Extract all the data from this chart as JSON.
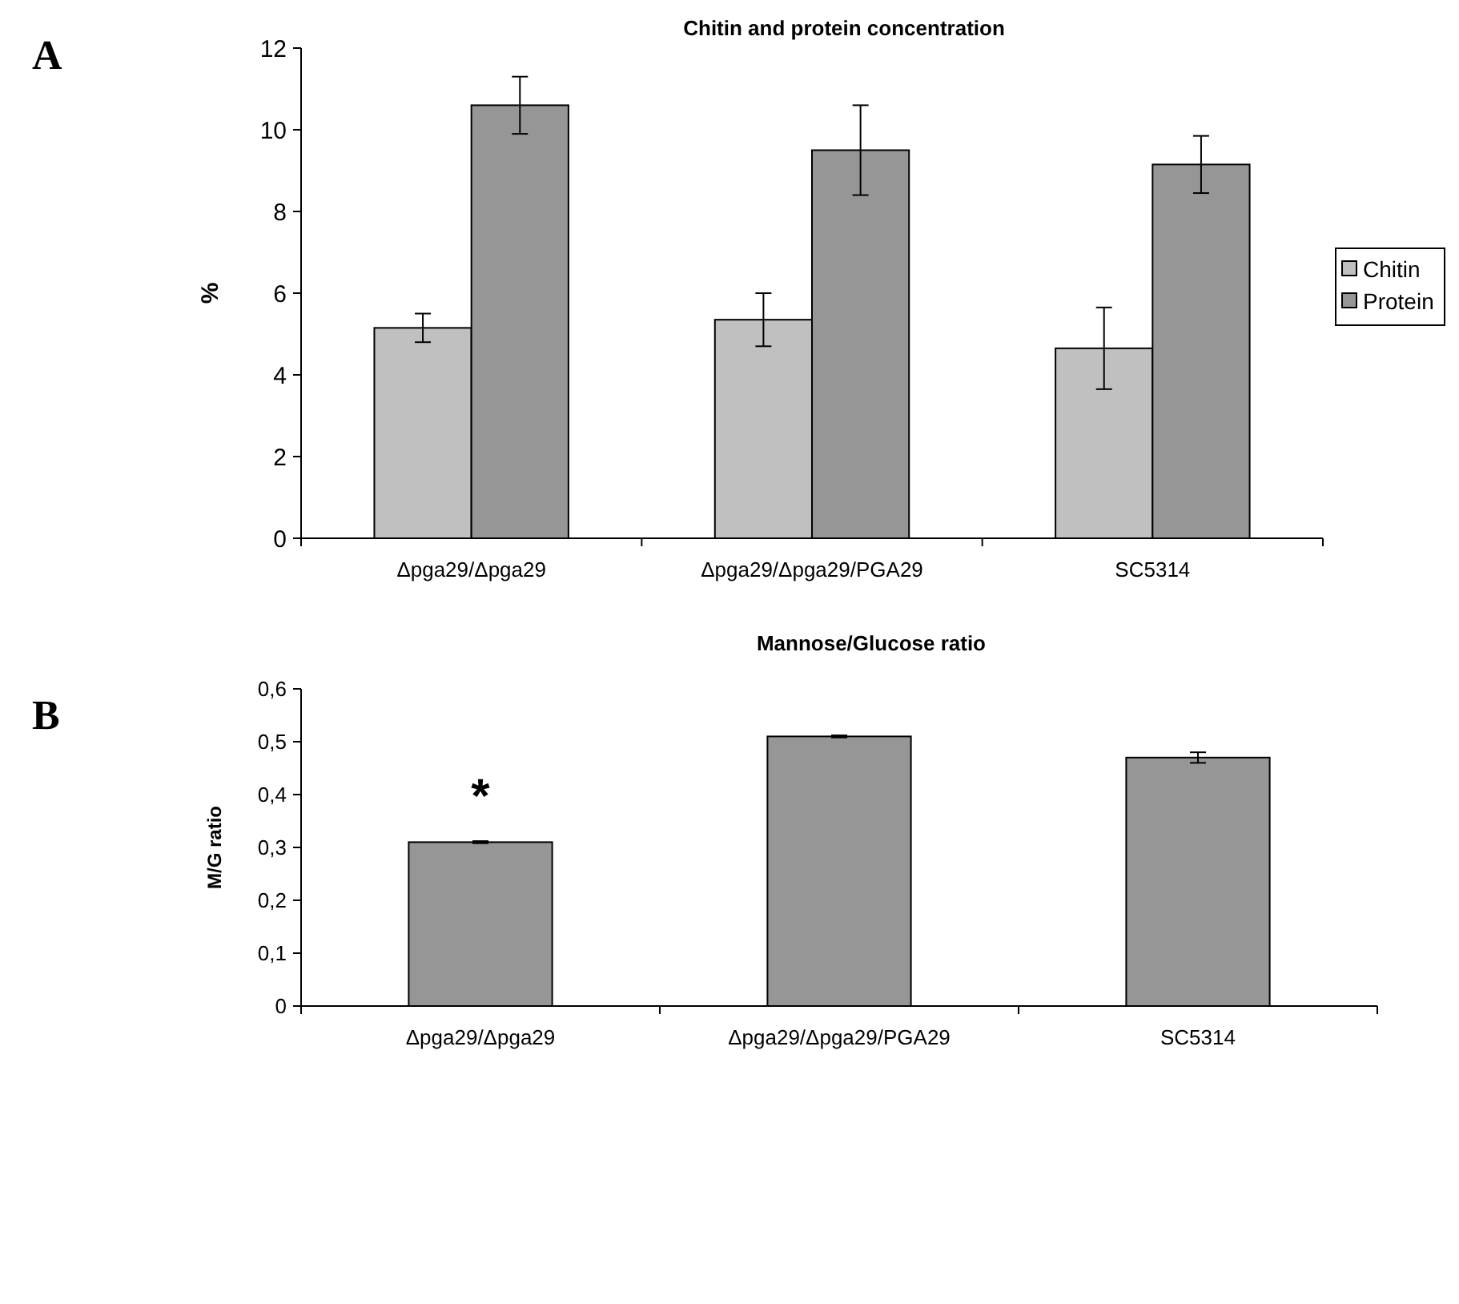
{
  "chart_data": [
    {
      "type": "bar",
      "title": "Chitin and protein concentration",
      "ylabel": "%",
      "annotations": [
        "A"
      ],
      "categories": [
        "Δpga29/Δpga29",
        "Δpga29/Δpga29/PGA29",
        "SC5314"
      ],
      "series": [
        {
          "name": "Chitin",
          "color": "#c0c0c0",
          "values": [
            5.15,
            5.35,
            4.65
          ],
          "errors": [
            0.35,
            0.65,
            1.0
          ]
        },
        {
          "name": "Protein",
          "color": "#969696",
          "values": [
            10.6,
            9.5,
            9.15
          ],
          "errors": [
            0.7,
            1.1,
            0.7
          ]
        }
      ],
      "ylim": [
        0,
        12
      ],
      "yticks": [
        0,
        2,
        4,
        6,
        8,
        10,
        12
      ],
      "legend": "right",
      "grid": false
    },
    {
      "type": "bar",
      "title": "Mannose/Glucose ratio",
      "ylabel": "M/G ratio",
      "annotations": [
        "B",
        "*"
      ],
      "categories": [
        "Δpga29/Δpga29",
        "Δpga29/Δpga29/PGA29",
        "SC5314"
      ],
      "series": [
        {
          "color": "#969696",
          "values": [
            0.31,
            0.51,
            0.47
          ],
          "errors": [
            0.002,
            0.002,
            0.01
          ]
        }
      ],
      "ylim": [
        0,
        0.6
      ],
      "yticks": [
        0,
        {
          "value": 0.1,
          "label": "0,1"
        },
        {
          "value": 0.2,
          "label": "0,2"
        },
        {
          "value": 0.3,
          "label": "0,3"
        },
        {
          "value": 0.4,
          "label": "0,4"
        },
        {
          "value": 0.5,
          "label": "0,5"
        },
        {
          "value": 0.6,
          "label": "0,6"
        }
      ],
      "legend": false,
      "grid": false
    }
  ]
}
